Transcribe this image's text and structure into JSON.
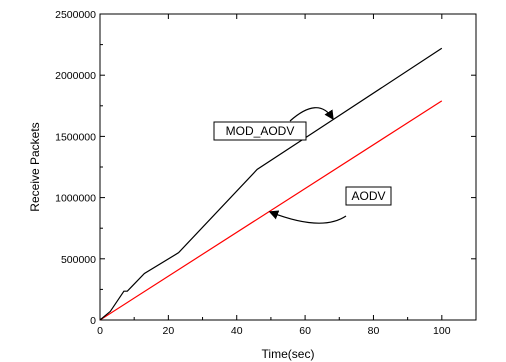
{
  "chart_data": {
    "type": "line",
    "title": "",
    "xlabel": "Time(sec)",
    "ylabel": "Receive Packets",
    "xlim": [
      0,
      110
    ],
    "ylim": [
      0,
      2500000
    ],
    "xticks": [
      0,
      20,
      40,
      60,
      80,
      100
    ],
    "xtick_labels": [
      "0",
      "20",
      "40",
      "60",
      "80",
      "100"
    ],
    "yticks": [
      0,
      500000,
      1000000,
      1500000,
      2000000,
      2500000
    ],
    "ytick_labels": [
      "0",
      "500000",
      "1000000",
      "1500000",
      "2000000",
      "2500000"
    ],
    "grid": false,
    "legend": "none",
    "series": [
      {
        "name": "MOD_AODV",
        "color": "#000000",
        "x": [
          0,
          3,
          7,
          8,
          9,
          13,
          23,
          46,
          100
        ],
        "y": [
          0,
          70000,
          235000,
          235000,
          265000,
          380000,
          550000,
          1230000,
          2220000
        ]
      },
      {
        "name": "AODV",
        "color": "#ff0000",
        "x": [
          0,
          100
        ],
        "y": [
          0,
          1790000
        ]
      }
    ],
    "annotations": [
      {
        "text": "MOD_AODV",
        "series": 0,
        "arrow_to": [
          68,
          1650000
        ]
      },
      {
        "text": "AODV",
        "series": 1,
        "arrow_to": [
          50,
          880000
        ]
      }
    ]
  }
}
